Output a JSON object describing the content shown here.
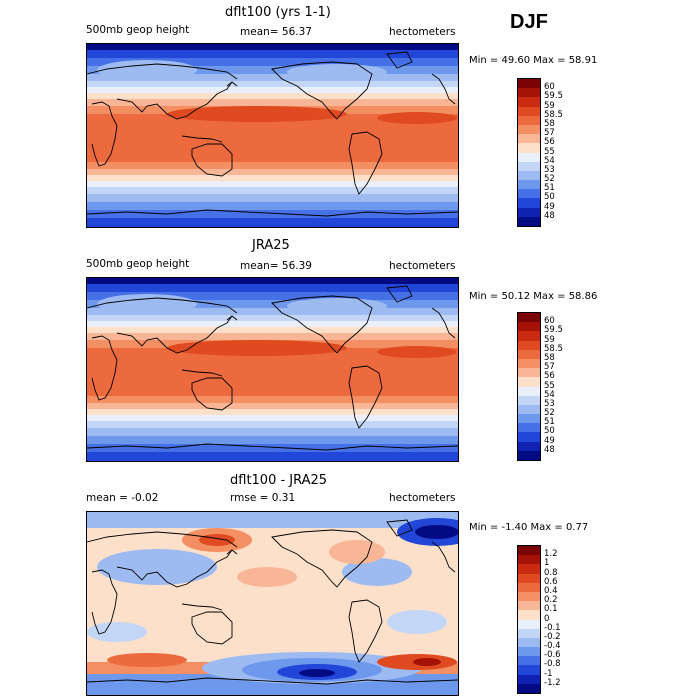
{
  "season": "DJF",
  "panels": [
    {
      "title": "dflt100 (yrs 1-1)",
      "left_label": "500mb geop height",
      "mid_label": "mean=  56.37",
      "units": "hectometers",
      "minmax": "Min =  49.60 Max =  58.91",
      "kind": "field"
    },
    {
      "title": "JRA25",
      "left_label": "500mb geop height",
      "mid_label": "mean=  56.39",
      "units": "hectometers",
      "minmax": "Min =  50.12 Max =  58.86",
      "kind": "field"
    },
    {
      "title": "dflt100 - JRA25",
      "left_label": "mean =   -0.02",
      "mid_label": "rmse =    0.31",
      "units": "hectometers",
      "minmax": "Min =  -1.40 Max =   0.77",
      "kind": "diff"
    }
  ],
  "colorbars": {
    "field": {
      "labels": [
        "60",
        "59.5",
        "59",
        "58.5",
        "58",
        "57",
        "56",
        "55",
        "54",
        "53",
        "52",
        "51",
        "50",
        "49",
        "48"
      ],
      "colors": [
        "#7a0403",
        "#a51307",
        "#c92a10",
        "#e04a20",
        "#ec6a3e",
        "#f48e63",
        "#f9b696",
        "#fde0ca",
        "#eaf0fb",
        "#c4d6f6",
        "#9dbbf1",
        "#6e98ec",
        "#4670e6",
        "#2246d8",
        "#0f22b2",
        "#020a84"
      ]
    },
    "diff": {
      "labels": [
        "1.2",
        "1",
        "0.8",
        "0.6",
        "0.4",
        "0.2",
        "0.1",
        "0",
        "-0.1",
        "-0.2",
        "-0.4",
        "-0.6",
        "-0.8",
        "-1",
        "-1.2"
      ],
      "colors": [
        "#7a0403",
        "#a51307",
        "#c92a10",
        "#e04a20",
        "#ec6a3e",
        "#f48e63",
        "#f9b696",
        "#fde0ca",
        "#eaf0fb",
        "#c4d6f6",
        "#9dbbf1",
        "#6e98ec",
        "#4670e6",
        "#2246d8",
        "#0f22b2",
        "#020a84"
      ]
    }
  }
}
